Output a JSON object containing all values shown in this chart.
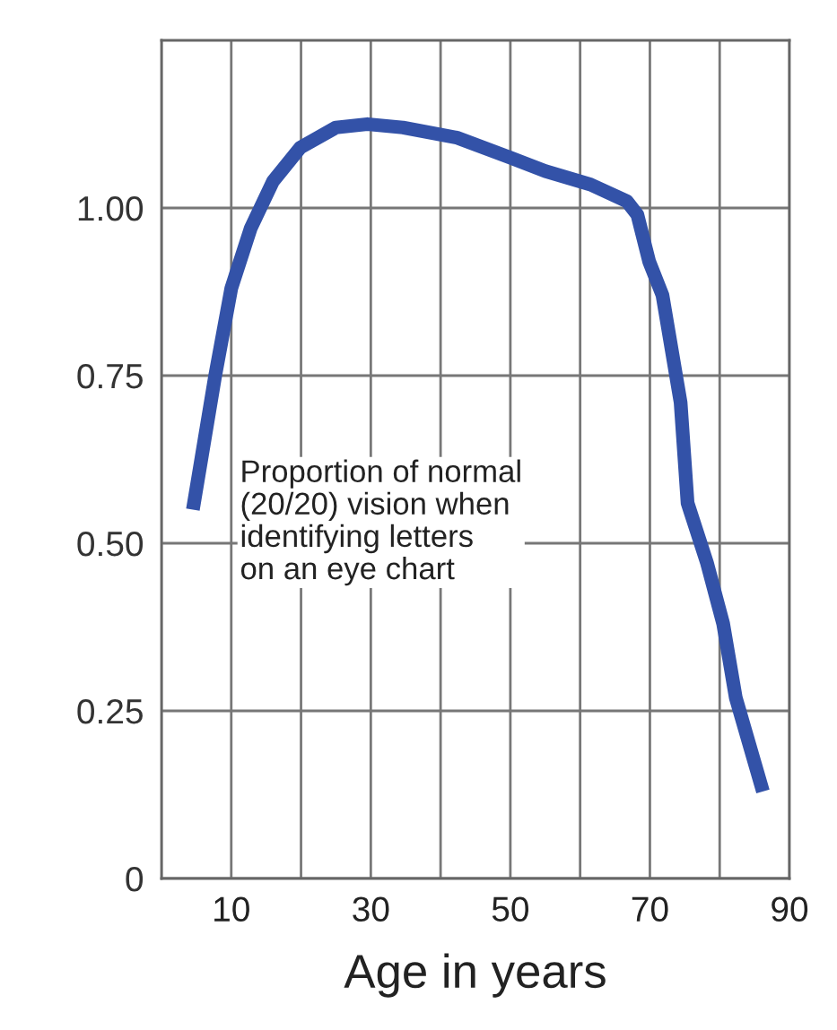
{
  "chart_data": {
    "type": "line",
    "xlabel": "Age in years",
    "x": [
      4.5,
      7.7,
      10,
      12.8,
      16,
      19.9,
      25,
      29.5,
      34.6,
      42.3,
      50,
      55,
      61.5,
      66.7,
      68.2,
      69.9,
      71.8,
      74.4,
      75.4,
      78.2,
      80.5,
      82.3,
      86.2
    ],
    "values": [
      0.55,
      0.75,
      0.88,
      0.97,
      1.04,
      1.09,
      1.12,
      1.125,
      1.12,
      1.105,
      1.075,
      1.055,
      1.035,
      1.01,
      0.99,
      0.92,
      0.87,
      0.71,
      0.56,
      0.47,
      0.38,
      0.27,
      0.13
    ],
    "color": "#3352a8",
    "xlim": [
      0,
      90
    ],
    "ylim": [
      0,
      1.25
    ],
    "xticks": [
      {
        "value": 0,
        "label": null
      },
      10,
      {
        "value": 20,
        "label": null
      },
      30,
      {
        "value": 40,
        "label": null
      },
      50,
      {
        "value": 60,
        "label": null
      },
      70,
      {
        "value": 80,
        "label": null
      },
      90
    ],
    "yticks": [
      0,
      0.25,
      {
        "value": 0.5,
        "label": "0.50"
      },
      0.75,
      {
        "value": 1.0,
        "label": "1.00"
      }
    ],
    "grid": true,
    "marker": "none",
    "line_style": "solid",
    "annotations": [
      "Proportion of normal\n(20/20) vision when\nidentifying letters\non an eye chart"
    ]
  }
}
